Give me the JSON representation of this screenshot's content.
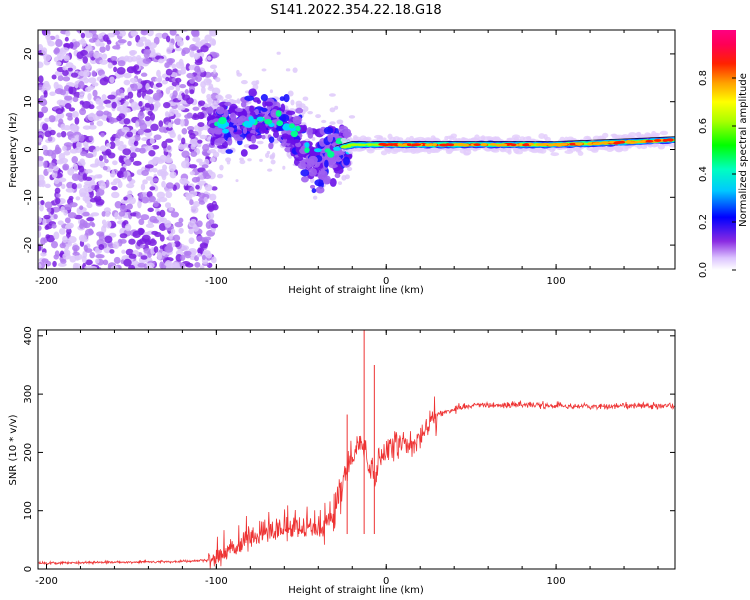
{
  "title": "S141.2022.354.22.18.G18",
  "chart_data": [
    {
      "type": "heatmap",
      "name": "spectrogram",
      "xlabel": "Height of straight line (km)",
      "ylabel": "Frequency (Hz)",
      "xlim": [
        -205,
        170
      ],
      "ylim": [
        -25,
        25
      ],
      "xticks": [
        -200,
        -100,
        0,
        100
      ],
      "yticks": [
        -20,
        -10,
        0,
        10,
        20
      ],
      "ridge": [
        {
          "x": -102,
          "y": 5
        },
        {
          "x": -90,
          "y": 6
        },
        {
          "x": -75,
          "y": 6
        },
        {
          "x": -62,
          "y": 6
        },
        {
          "x": -50,
          "y": 3
        },
        {
          "x": -40,
          "y": -1
        },
        {
          "x": -30,
          "y": 0
        },
        {
          "x": -20,
          "y": 1
        },
        {
          "x": -10,
          "y": 1
        },
        {
          "x": 0,
          "y": 1
        },
        {
          "x": 20,
          "y": 1
        },
        {
          "x": 50,
          "y": 1
        },
        {
          "x": 100,
          "y": 1
        },
        {
          "x": 140,
          "y": 1.5
        },
        {
          "x": 170,
          "y": 2
        }
      ],
      "colorbar": {
        "label": "Normalized spectral amplitude",
        "range": [
          0,
          1
        ],
        "ticks": [
          "0.0",
          "0.2",
          "0.4",
          "0.6",
          "0.8"
        ]
      },
      "grid": false
    },
    {
      "type": "line",
      "name": "snr",
      "xlabel": "Height of straight line (km)",
      "ylabel": "SNR (10 * v/v)",
      "xlim": [
        -205,
        170
      ],
      "ylim": [
        0,
        410
      ],
      "xticks": [
        -200,
        -100,
        0,
        100
      ],
      "yticks": [
        0,
        100,
        200,
        300,
        400
      ],
      "color": "#ee3333",
      "series": [
        {
          "x": [
            -205,
            -180,
            -150,
            -120,
            -105,
            -95,
            -85,
            -75,
            -65,
            -55,
            -45,
            -38,
            -30,
            -25,
            -22,
            -18,
            -15,
            -12,
            -10,
            -8,
            -5,
            0,
            5,
            10,
            15,
            20,
            25,
            30,
            40,
            50,
            60,
            80,
            100,
            120,
            140,
            170
          ],
          "y": [
            10,
            11,
            12,
            13,
            15,
            25,
            40,
            60,
            65,
            70,
            70,
            70,
            100,
            150,
            180,
            200,
            220,
            200,
            180,
            160,
            175,
            200,
            210,
            220,
            210,
            230,
            250,
            265,
            275,
            280,
            280,
            282,
            280,
            278,
            280,
            280
          ],
          "spikes": [
            {
              "x": -23,
              "y": 265
            },
            {
              "x": -13,
              "y": 410
            },
            {
              "x": -7,
              "y": 350
            }
          ]
        }
      ],
      "grid": false
    }
  ]
}
